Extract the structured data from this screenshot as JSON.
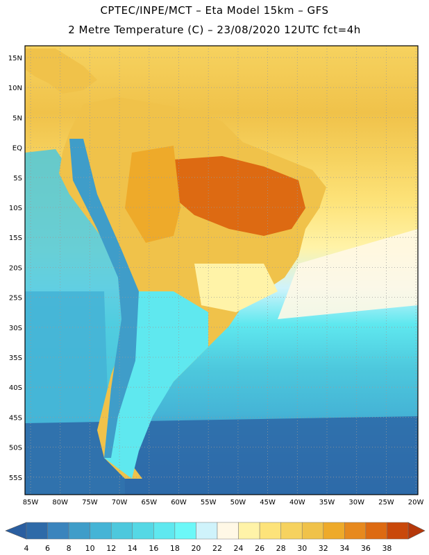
{
  "title": {
    "line1": "CPTEC/INPE/MCT –  Eta Model 15km – GFS",
    "line2": "2 Metre Temperature (C) – 23/08/2020 12UTC fct=4h"
  },
  "map": {
    "region": "South America",
    "lat_labels": [
      "15N",
      "10N",
      "5N",
      "EQ",
      "5S",
      "10S",
      "15S",
      "20S",
      "25S",
      "30S",
      "35S",
      "40S",
      "45S",
      "50S",
      "55S"
    ],
    "lon_labels": [
      "85W",
      "80W",
      "75W",
      "70W",
      "65W",
      "60W",
      "55W",
      "50W",
      "45W",
      "40W",
      "35W",
      "30W",
      "25W",
      "20W"
    ]
  },
  "colorbar": {
    "ticks": [
      "4",
      "6",
      "8",
      "10",
      "12",
      "14",
      "16",
      "18",
      "20",
      "22",
      "24",
      "26",
      "28",
      "30",
      "32",
      "34",
      "36",
      "38"
    ],
    "colors": [
      "#2e6aa8",
      "#3a84bd",
      "#3f9dc9",
      "#45b4d6",
      "#4dc8dd",
      "#55d8e5",
      "#5fe8ef",
      "#6cf8f8",
      "#cff3fb",
      "#fff8e6",
      "#fff3a8",
      "#fde37a",
      "#f6d25f",
      "#f0c24a",
      "#eeaa2a",
      "#e7891e",
      "#dd6a12",
      "#c9480a"
    ],
    "under_color": "#2a5ea0",
    "over_color": "#b5380a"
  }
}
